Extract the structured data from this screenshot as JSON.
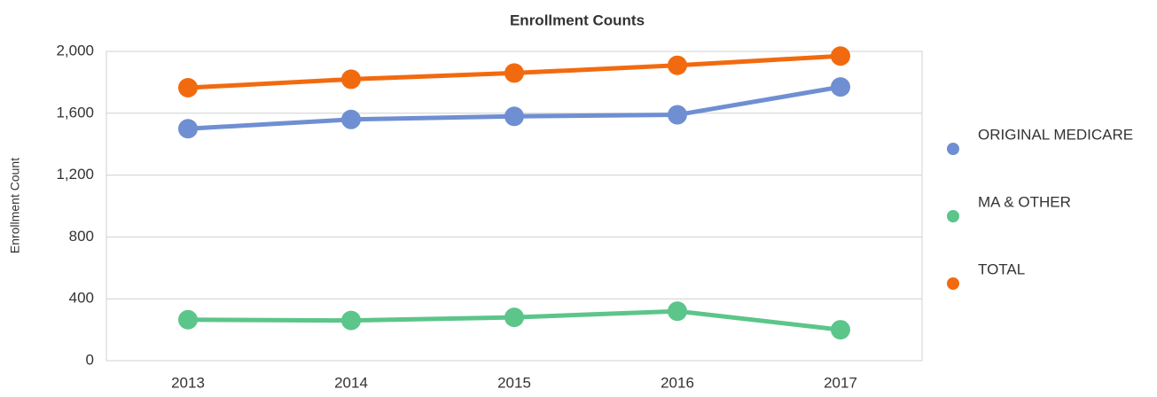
{
  "chart_data": {
    "type": "line",
    "title": "Enrollment Counts",
    "y_label": "Enrollment Count",
    "categories": [
      "2013",
      "2014",
      "2015",
      "2016",
      "2017"
    ],
    "series": [
      {
        "name": "ORIGINAL MEDICARE",
        "color": "#6f8fd2",
        "values": [
          1500,
          1560,
          1580,
          1590,
          1770
        ]
      },
      {
        "name": "MA & OTHER",
        "color": "#5cc58a",
        "values": [
          265,
          260,
          280,
          320,
          200
        ]
      },
      {
        "name": "TOTAL",
        "color": "#f26a0f",
        "values": [
          1765,
          1820,
          1860,
          1910,
          1970
        ]
      }
    ],
    "ylim": [
      0,
      2000
    ],
    "yticks": [
      0,
      400,
      800,
      {
        "value": 1200,
        "label": "1,200"
      },
      {
        "value": 1600,
        "label": "1,600"
      },
      {
        "value": 2000,
        "label": "2,000"
      }
    ],
    "grid": true,
    "legend": "right"
  }
}
